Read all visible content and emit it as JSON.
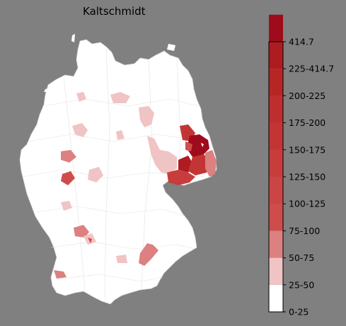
{
  "title": "Kaltschmidt",
  "legend": {
    "labels": [
      "414.7",
      "225-414.7",
      "200-225",
      "175-200",
      "150-175",
      "125-150",
      "100-125",
      "75-100",
      "50-75",
      "25-50",
      "0-25"
    ],
    "bins": [
      {
        "label": "0-25",
        "color": "#ffffff"
      },
      {
        "label": "25-50",
        "color": "#f0c4c4"
      },
      {
        "label": "50-75",
        "color": "#dd8080"
      },
      {
        "label": "75-100",
        "color": "#cf4c4c"
      },
      {
        "label": "100-125",
        "color": "#cc4545"
      },
      {
        "label": "125-150",
        "color": "#c83c3c"
      },
      {
        "label": "150-175",
        "color": "#c33535"
      },
      {
        "label": "175-200",
        "color": "#be2e2e"
      },
      {
        "label": "200-225",
        "color": "#b82525"
      },
      {
        "label": "225-414.7",
        "color": "#ae1c22"
      },
      {
        "label": "414.7",
        "color": "#9e0c1c"
      }
    ]
  },
  "map": {
    "country": "Germany",
    "background_color": "#808080",
    "base_fill": "#ffffff",
    "border_color": "#d8d8d8"
  }
}
